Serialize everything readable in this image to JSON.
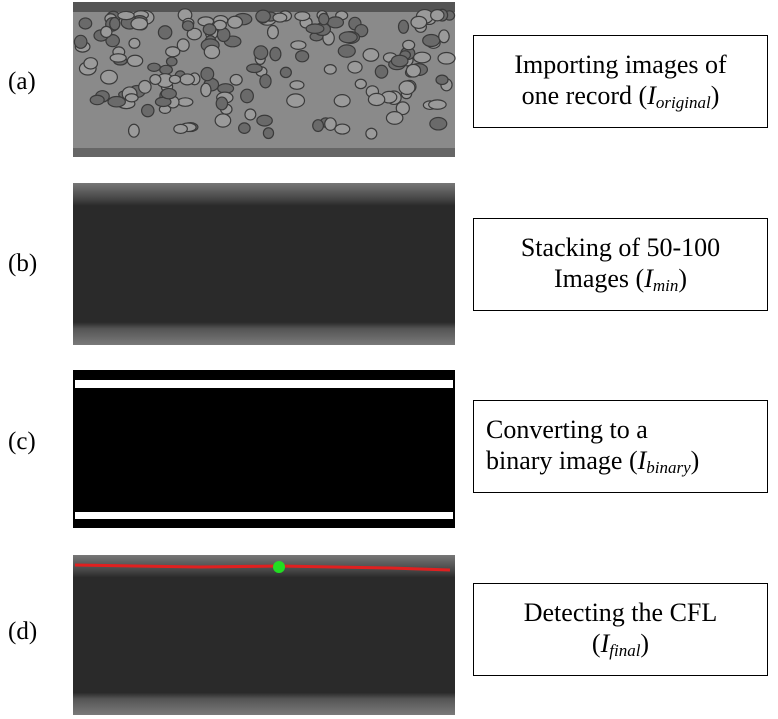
{
  "panels": [
    {
      "label": "(a)",
      "line1": "Importing images of",
      "line2_prefix": "one record (",
      "symbol": "I",
      "subscript": "original",
      "suffix": ")"
    },
    {
      "label": "(b)",
      "line1": "Stacking of 50-100",
      "line2_prefix": "Images (",
      "symbol": "I",
      "subscript": "min",
      "suffix": ")"
    },
    {
      "label": "(c)",
      "line1": "Converting to a",
      "line2_prefix": "binary image (",
      "symbol": "I",
      "subscript": "binary",
      "suffix": ")"
    },
    {
      "label": "(d)",
      "line1": "Detecting the CFL",
      "line2_prefix": "(",
      "symbol": "I",
      "subscript": "final",
      "suffix": ")"
    }
  ]
}
